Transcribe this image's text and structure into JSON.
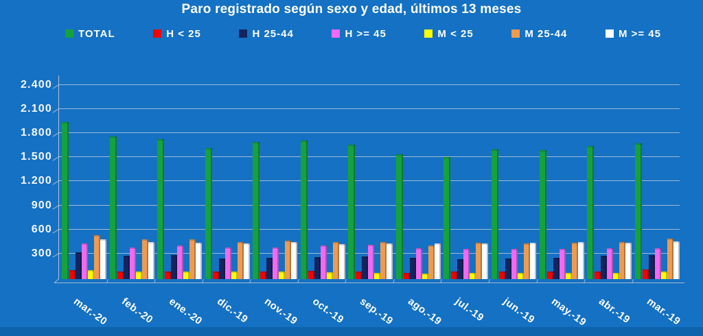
{
  "colors": {
    "background": "#1571C3",
    "background_bottom": "#0D63AC",
    "gridline": "#C3CDD8",
    "text": "#FFFFFF"
  },
  "chart_data": {
    "type": "bar",
    "title": "Paro registrado según sexo y edad, últimos 13 meses",
    "legend_position": "top",
    "grid": true,
    "ylim": [
      0,
      2400
    ],
    "y_ticks": [
      {
        "value": 300,
        "label": "300"
      },
      {
        "value": 600,
        "label": "600"
      },
      {
        "value": 900,
        "label": "900"
      },
      {
        "value": 1200,
        "label": "1.200"
      },
      {
        "value": 1500,
        "label": "1.500"
      },
      {
        "value": 1800,
        "label": "1.800"
      },
      {
        "value": 2100,
        "label": "2.100"
      },
      {
        "value": 2400,
        "label": "2.400"
      }
    ],
    "categories": [
      "mar.-20",
      "feb.-20",
      "ene.-20",
      "dic.-19",
      "nov.-19",
      "oct.-19",
      "sep.-19",
      "ago.-19",
      "jul.-19",
      "jun.-19",
      "may.-19",
      "abr.-19",
      "mar.-19"
    ],
    "series": [
      {
        "name": "TOTAL",
        "color": "#15A23E",
        "values": [
          1955,
          1775,
          1745,
          1635,
          1710,
          1725,
          1670,
          1550,
          1520,
          1615,
          1605,
          1660,
          1695
        ]
      },
      {
        "name": "H < 25",
        "color": "#F40000",
        "values": [
          115,
          95,
          95,
          90,
          95,
          100,
          90,
          80,
          90,
          95,
          90,
          95,
          120
        ]
      },
      {
        "name": "H 25-44",
        "color": "#13245F",
        "values": [
          330,
          290,
          295,
          260,
          265,
          275,
          280,
          265,
          245,
          260,
          265,
          290,
          300
        ]
      },
      {
        "name": "H >= 45",
        "color": "#EE6BF2",
        "values": [
          445,
          395,
          415,
          395,
          395,
          415,
          430,
          385,
          380,
          380,
          380,
          385,
          385
        ]
      },
      {
        "name": "M < 25",
        "color": "#FDFF00",
        "values": [
          110,
          90,
          95,
          90,
          90,
          85,
          80,
          70,
          75,
          75,
          75,
          75,
          95
        ]
      },
      {
        "name": "M 25-44",
        "color": "#EE9B52",
        "values": [
          550,
          495,
          495,
          460,
          480,
          460,
          465,
          420,
          450,
          445,
          455,
          465,
          500
        ]
      },
      {
        "name": "M >= 45",
        "color": "#FFFFFF",
        "values": [
          495,
          465,
          455,
          445,
          460,
          435,
          440,
          440,
          440,
          455,
          460,
          455,
          470
        ]
      }
    ]
  }
}
